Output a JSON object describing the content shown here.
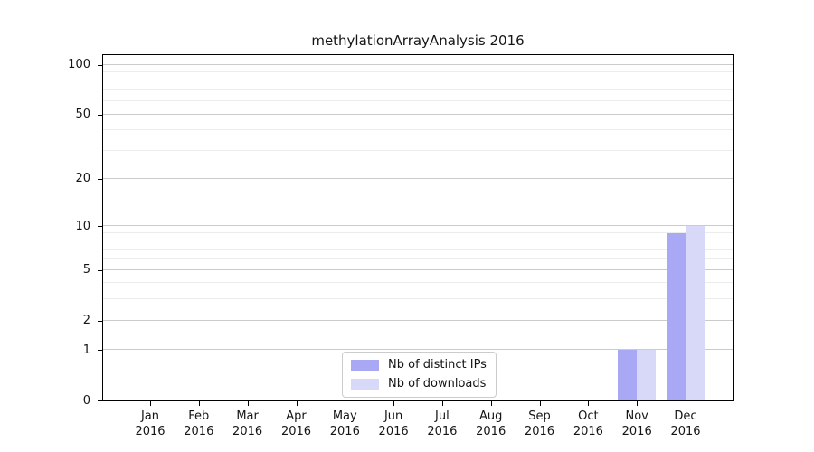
{
  "chart_data": {
    "type": "bar",
    "title": "methylationArrayAnalysis 2016",
    "categories": [
      "Jan",
      "Feb",
      "Mar",
      "Apr",
      "May",
      "Jun",
      "Jul",
      "Aug",
      "Sep",
      "Oct",
      "Nov",
      "Dec"
    ],
    "category_year": "2016",
    "series": [
      {
        "name": "Nb of distinct IPs",
        "color": "#a8a8f4",
        "values": [
          0,
          0,
          0,
          0,
          0,
          0,
          0,
          0,
          0,
          0,
          1,
          9
        ]
      },
      {
        "name": "Nb of downloads",
        "color": "#d8d8f9",
        "values": [
          0,
          0,
          0,
          0,
          0,
          0,
          0,
          0,
          0,
          0,
          1,
          10
        ]
      }
    ],
    "xlabel": "",
    "ylabel": "",
    "yscale": "log1p",
    "ylim": [
      0,
      114
    ],
    "yticks": [
      0,
      1,
      2,
      5,
      10,
      20,
      50,
      100
    ],
    "yticks_minor": [
      3,
      4,
      6,
      7,
      8,
      9,
      30,
      40,
      60,
      70,
      80,
      90
    ],
    "grid": "horizontal",
    "legend_position": "lower-center",
    "colors": {
      "major_grid": "#cbcbcb",
      "minor_grid": "#ececec",
      "axis": "#000000",
      "text": "#151515",
      "background": "#ffffff"
    }
  }
}
